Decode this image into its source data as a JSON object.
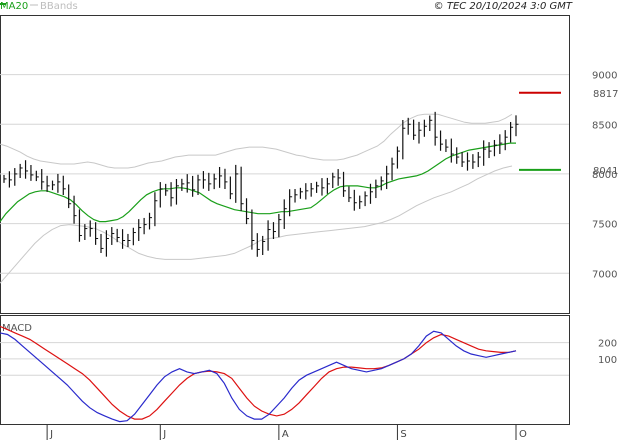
{
  "header": {
    "legend_ma": "MA20",
    "legend_bb": "BBands",
    "copyright": "© TEC 20/10/2024 3:0 GMT"
  },
  "colors": {
    "price": "#111111",
    "ma": "#1a9f1a",
    "bands": "#c8c8c8",
    "resistance": "#cc0000",
    "support": "#1a9f1a",
    "macd": "#2a2acc",
    "signal": "#dd1111",
    "grid": "#d6d6d6",
    "frame": "#333333"
  },
  "chart_data": [
    {
      "type": "ohlc",
      "title": "",
      "ylim": [
        6600,
        9600
      ],
      "yticks": [
        7000,
        7500,
        8000,
        8500,
        9000
      ],
      "x_labels": [
        "J",
        "J",
        "A",
        "S",
        "O"
      ],
      "x_label_index": [
        8,
        29,
        51,
        73,
        95
      ],
      "levels": [
        {
          "name": "resistance",
          "value": 8817,
          "label": "8817"
        },
        {
          "name": "support",
          "value": 8041,
          "label": "8041"
        }
      ],
      "series": [
        {
          "name": "close",
          "values": [
            7950,
            7940,
            8000,
            8060,
            8030,
            7990,
            7970,
            7920,
            7880,
            7890,
            7920,
            7850,
            7700,
            7580,
            7380,
            7450,
            7450,
            7350,
            7250,
            7350,
            7400,
            7360,
            7330,
            7330,
            7410,
            7460,
            7490,
            7560,
            7730,
            7850,
            7830,
            7760,
            7880,
            7900,
            7910,
            7840,
            7940,
            7940,
            7900,
            7950,
            7980,
            7920,
            7800,
            8000,
            7700,
            7550,
            7330,
            7240,
            7320,
            7440,
            7420,
            7540,
            7650,
            7770,
            7790,
            7820,
            7830,
            7850,
            7880,
            7860,
            7900,
            7970,
            7960,
            7830,
            7760,
            7710,
            7720,
            7780,
            7820,
            7880,
            7930,
            8000,
            8100,
            8230,
            8460,
            8500,
            8390,
            8440,
            8480,
            8540,
            8370,
            8300,
            8270,
            8200,
            8170,
            8120,
            8130,
            8120,
            8170,
            8250,
            8230,
            8290,
            8310,
            8370,
            8470,
            8500
          ]
        },
        {
          "name": "MA20",
          "values": [
            7520,
            7600,
            7660,
            7720,
            7760,
            7800,
            7820,
            7830,
            7830,
            7810,
            7790,
            7770,
            7740,
            7690,
            7630,
            7580,
            7540,
            7520,
            7520,
            7530,
            7540,
            7570,
            7620,
            7680,
            7740,
            7790,
            7820,
            7840,
            7850,
            7850,
            7860,
            7860,
            7850,
            7830,
            7810,
            7770,
            7730,
            7700,
            7680,
            7660,
            7640,
            7630,
            7620,
            7610,
            7600,
            7600,
            7600,
            7610,
            7620,
            7620,
            7630,
            7640,
            7650,
            7660,
            7700,
            7750,
            7800,
            7840,
            7870,
            7880,
            7880,
            7880,
            7870,
            7860,
            7860,
            7880,
            7910,
            7930,
            7950,
            7960,
            7970,
            7980,
            8000,
            8030,
            8070,
            8110,
            8150,
            8180,
            8200,
            8220,
            8240,
            8250,
            8260,
            8270,
            8280,
            8290,
            8300,
            8310,
            8310
          ]
        },
        {
          "name": "BB_upper",
          "values": [
            8300,
            8280,
            8250,
            8220,
            8180,
            8150,
            8130,
            8120,
            8110,
            8100,
            8100,
            8100,
            8110,
            8120,
            8110,
            8090,
            8070,
            8060,
            8060,
            8060,
            8070,
            8090,
            8110,
            8120,
            8130,
            8150,
            8170,
            8180,
            8190,
            8190,
            8190,
            8190,
            8190,
            8210,
            8230,
            8250,
            8260,
            8270,
            8270,
            8270,
            8260,
            8250,
            8230,
            8210,
            8190,
            8180,
            8160,
            8150,
            8140,
            8140,
            8140,
            8150,
            8170,
            8190,
            8220,
            8250,
            8280,
            8330,
            8400,
            8460,
            8520,
            8560,
            8590,
            8600,
            8600,
            8600,
            8580,
            8560,
            8540,
            8520,
            8510,
            8510,
            8510,
            8520,
            8530,
            8560,
            8600
          ]
        },
        {
          "name": "BB_lower",
          "values": [
            6900,
            7000,
            7100,
            7200,
            7300,
            7380,
            7440,
            7480,
            7490,
            7480,
            7470,
            7450,
            7410,
            7360,
            7300,
            7250,
            7200,
            7170,
            7150,
            7140,
            7140,
            7140,
            7140,
            7150,
            7160,
            7170,
            7180,
            7200,
            7240,
            7280,
            7330,
            7350,
            7360,
            7380,
            7390,
            7400,
            7410,
            7420,
            7430,
            7440,
            7450,
            7460,
            7470,
            7490,
            7510,
            7540,
            7580,
            7630,
            7680,
            7720,
            7760,
            7790,
            7820,
            7860,
            7900,
            7950,
            7990,
            8030,
            8060,
            8080
          ]
        }
      ]
    },
    {
      "type": "line",
      "title": "MACD",
      "ylim": [
        -300,
        370
      ],
      "yticks": [
        100,
        200
      ],
      "series": [
        {
          "name": "MACD",
          "values": [
            260,
            250,
            220,
            180,
            140,
            100,
            60,
            20,
            -20,
            -60,
            -110,
            -160,
            -200,
            -230,
            -250,
            -270,
            -285,
            -280,
            -240,
            -180,
            -120,
            -60,
            -10,
            20,
            40,
            20,
            10,
            20,
            30,
            10,
            -50,
            -140,
            -210,
            -250,
            -270,
            -270,
            -240,
            -190,
            -140,
            -80,
            -30,
            0,
            20,
            40,
            60,
            80,
            60,
            40,
            30,
            20,
            30,
            40,
            60,
            80,
            100,
            130,
            180,
            240,
            270,
            260,
            220,
            180,
            150,
            130,
            120,
            110,
            120,
            130,
            140,
            150
          ]
        },
        {
          "name": "Signal",
          "values": [
            300,
            280,
            260,
            240,
            220,
            190,
            160,
            130,
            100,
            70,
            40,
            10,
            -30,
            -80,
            -130,
            -180,
            -220,
            -250,
            -270,
            -270,
            -250,
            -210,
            -160,
            -110,
            -60,
            -20,
            10,
            20,
            25,
            20,
            10,
            -20,
            -80,
            -140,
            -190,
            -220,
            -240,
            -250,
            -240,
            -210,
            -170,
            -120,
            -70,
            -20,
            20,
            40,
            50,
            50,
            45,
            40,
            40,
            45,
            60,
            80,
            100,
            130,
            160,
            200,
            230,
            250,
            240,
            220,
            200,
            180,
            160,
            150,
            145,
            140,
            140,
            150
          ]
        }
      ]
    }
  ]
}
